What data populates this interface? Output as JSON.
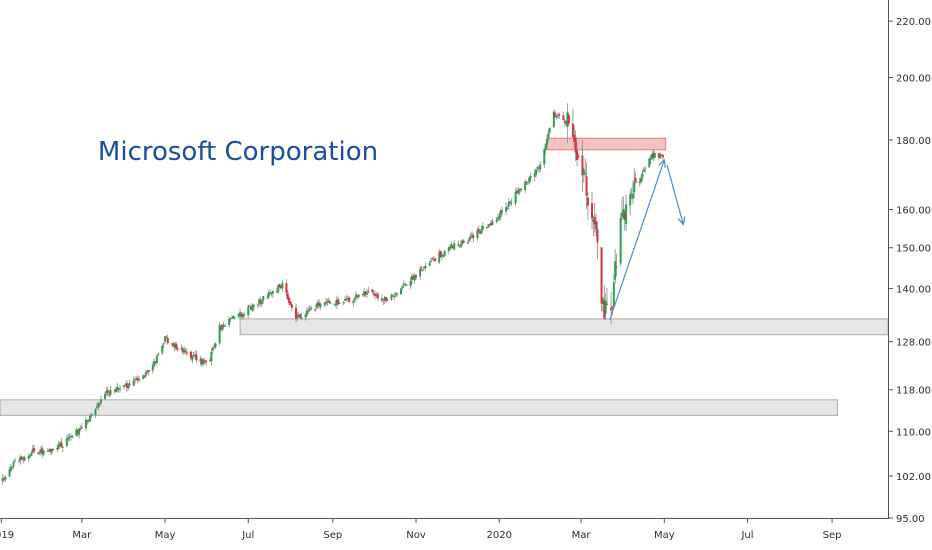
{
  "chart_data": {
    "type": "candlestick",
    "title": "Microsoft Corporation",
    "y_scale": "log",
    "ylim": [
      95,
      228
    ],
    "y_ticks": [
      "95.00",
      "102.00",
      "110.00",
      "118.00",
      "128.00",
      "140.00",
      "150.00",
      "160.00",
      "180.00",
      "200.00",
      "220.00"
    ],
    "x_range": [
      "2018-12-31",
      "2020-10-12"
    ],
    "x_ticks": [
      {
        "date": "2019-01-01",
        "label": "2019"
      },
      {
        "date": "2019-03-01",
        "label": "Mar"
      },
      {
        "date": "2019-05-01",
        "label": "May"
      },
      {
        "date": "2019-07-01",
        "label": "Jul"
      },
      {
        "date": "2019-09-01",
        "label": "Sep"
      },
      {
        "date": "2019-11-01",
        "label": "Nov"
      },
      {
        "date": "2020-01-01",
        "label": "2020"
      },
      {
        "date": "2020-03-01",
        "label": "Mar"
      },
      {
        "date": "2020-05-01",
        "label": "May"
      },
      {
        "date": "2020-07-01",
        "label": "Jul"
      },
      {
        "date": "2020-09-01",
        "label": "Sep"
      }
    ],
    "grid": false,
    "colors": {
      "up": "#26a34a",
      "down": "#d6343f",
      "arrow": "#4a8fd4",
      "title": "#1a4fa0"
    },
    "price_path": [
      {
        "date": "2019-01-02",
        "price": 101.1
      },
      {
        "date": "2019-01-10",
        "price": 104.0
      },
      {
        "date": "2019-01-25",
        "price": 106.5
      },
      {
        "date": "2019-02-05",
        "price": 106.0
      },
      {
        "date": "2019-02-20",
        "price": 108.5
      },
      {
        "date": "2019-03-05",
        "price": 112.0
      },
      {
        "date": "2019-03-20",
        "price": 117.5
      },
      {
        "date": "2019-04-05",
        "price": 119.0
      },
      {
        "date": "2019-04-20",
        "price": 121.5
      },
      {
        "date": "2019-05-01",
        "price": 128.5
      },
      {
        "date": "2019-05-15",
        "price": 126.0
      },
      {
        "date": "2019-06-01",
        "price": 123.0
      },
      {
        "date": "2019-06-10",
        "price": 131.0
      },
      {
        "date": "2019-06-25",
        "price": 134.0
      },
      {
        "date": "2019-07-10",
        "price": 137.0
      },
      {
        "date": "2019-07-26",
        "price": 141.0
      },
      {
        "date": "2019-08-05",
        "price": 133.0
      },
      {
        "date": "2019-08-25",
        "price": 137.0
      },
      {
        "date": "2019-09-10",
        "price": 137.0
      },
      {
        "date": "2019-09-25",
        "price": 139.0
      },
      {
        "date": "2019-10-10",
        "price": 137.5
      },
      {
        "date": "2019-10-25",
        "price": 141.0
      },
      {
        "date": "2019-11-10",
        "price": 146.0
      },
      {
        "date": "2019-11-25",
        "price": 150.0
      },
      {
        "date": "2019-12-10",
        "price": 152.0
      },
      {
        "date": "2019-12-31",
        "price": 158.0
      },
      {
        "date": "2020-01-15",
        "price": 165.0
      },
      {
        "date": "2020-01-31",
        "price": 172.0
      },
      {
        "date": "2020-02-07",
        "price": 184.0
      },
      {
        "date": "2020-02-10",
        "price": 188.0
      },
      {
        "date": "2020-02-20",
        "price": 185.0
      },
      {
        "date": "2020-03-05",
        "price": 166.0
      },
      {
        "date": "2020-03-12",
        "price": 153.0
      },
      {
        "date": "2020-03-16",
        "price": 135.5
      },
      {
        "date": "2020-03-23",
        "price": 135.0
      },
      {
        "date": "2020-03-30",
        "price": 157.0
      },
      {
        "date": "2020-04-10",
        "price": 165.0
      },
      {
        "date": "2020-04-20",
        "price": 175.0
      },
      {
        "date": "2020-04-30",
        "price": 175.5
      }
    ],
    "annotations": {
      "resistance_band": {
        "date_start": "2020-02-05",
        "date_end": "2020-05-02",
        "price_low": 177.0,
        "price_high": 180.5
      },
      "support_band_upper": {
        "date_start": "2019-06-25",
        "date_end": "2020-10-12",
        "price_low": 129.5,
        "price_high": 133.0
      },
      "support_band_lower": {
        "date_start": "2018-12-31",
        "date_end": "2020-09-05",
        "price_low": 113.0,
        "price_high": 116.0
      },
      "arrow_up": {
        "from": {
          "date": "2020-03-22",
          "price": 132.8
        },
        "to": {
          "date": "2020-05-01",
          "price": 174.0
        }
      },
      "arrow_down": {
        "from": {
          "date": "2020-05-03",
          "price": 172.5
        },
        "to": {
          "date": "2020-05-15",
          "price": 156.0
        }
      }
    }
  }
}
